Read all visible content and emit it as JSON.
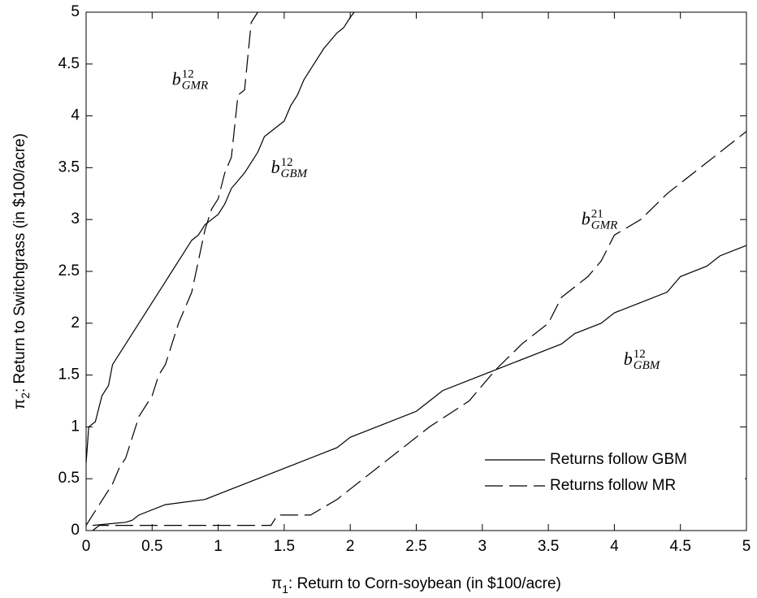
{
  "chart_data": {
    "type": "line",
    "xlabel": {
      "symbol": "π",
      "sub": "1",
      "text": ": Return to Corn-soybean (in $100/acre)"
    },
    "ylabel": {
      "symbol": "π",
      "sub": "2",
      "text": ": Return to Switchgrass (in $100/acre)"
    },
    "xlim": [
      0,
      5
    ],
    "ylim": [
      0,
      5
    ],
    "xticks": [
      0,
      0.5,
      1,
      1.5,
      2,
      2.5,
      3,
      3.5,
      4,
      4.5,
      5
    ],
    "yticks": [
      0,
      0.5,
      1,
      1.5,
      2,
      2.5,
      3,
      3.5,
      4,
      4.5,
      5
    ],
    "legend": "lower right",
    "series": [
      {
        "name": "Returns follow GBM",
        "color": "#000000",
        "dash": "solid",
        "x": [
          0,
          0.02,
          0.07,
          0.12,
          0.17,
          0.2,
          0.25,
          0.3,
          0.35,
          0.4,
          0.45,
          0.5,
          0.55,
          0.6,
          0.65,
          0.7,
          0.75,
          0.8,
          0.85,
          0.9,
          1.0,
          1.05,
          1.1,
          1.2,
          1.25,
          1.3,
          1.35,
          1.4,
          1.5,
          1.55,
          1.6,
          1.65,
          1.7,
          1.75,
          1.8,
          1.9,
          1.95,
          2.0,
          2.03,
          null,
          0.05,
          0.3,
          0.35,
          0.4,
          0.6,
          0.9,
          1.0,
          1.1,
          1.2,
          1.4,
          1.6,
          1.8,
          1.9,
          2.0,
          2.2,
          2.5,
          2.6,
          2.7,
          2.9,
          3.0,
          3.2,
          3.5,
          3.6,
          3.7,
          3.9,
          4.0,
          4.2,
          4.4,
          4.5,
          4.7,
          4.8,
          5.0
        ],
        "values": [
          0.65,
          1.0,
          1.05,
          1.3,
          1.4,
          1.6,
          1.7,
          1.8,
          1.9,
          2.0,
          2.1,
          2.2,
          2.3,
          2.4,
          2.5,
          2.6,
          2.7,
          2.8,
          2.85,
          2.95,
          3.05,
          3.15,
          3.3,
          3.45,
          3.55,
          3.65,
          3.8,
          3.85,
          3.95,
          4.1,
          4.2,
          4.35,
          4.45,
          4.55,
          4.65,
          4.8,
          4.85,
          4.95,
          5.0,
          null,
          0.05,
          0.08,
          0.1,
          0.15,
          0.25,
          0.3,
          0.35,
          0.4,
          0.45,
          0.55,
          0.65,
          0.75,
          0.8,
          0.9,
          1.0,
          1.15,
          1.25,
          1.35,
          1.45,
          1.5,
          1.6,
          1.75,
          1.8,
          1.9,
          2.0,
          2.1,
          2.2,
          2.3,
          2.45,
          2.55,
          2.65,
          2.75
        ]
      },
      {
        "name": "Returns follow MR",
        "color": "#000000",
        "dash": "dashed",
        "x": [
          0,
          0.05,
          0.1,
          0.15,
          0.2,
          0.25,
          0.3,
          0.35,
          0.4,
          0.45,
          0.5,
          0.55,
          0.6,
          0.65,
          0.7,
          0.8,
          0.85,
          0.9,
          0.95,
          1.0,
          1.05,
          1.1,
          1.15,
          1.2,
          1.25,
          1.3,
          null,
          0.05,
          0.1,
          0.5,
          1.4,
          1.45,
          1.7,
          1.9,
          2.0,
          2.3,
          2.6,
          2.9,
          3.0,
          3.1,
          3.3,
          3.5,
          3.6,
          3.8,
          3.9,
          4.0,
          4.2,
          4.4,
          4.6,
          4.8,
          5.0
        ],
        "values": [
          0.05,
          0.15,
          0.25,
          0.35,
          0.45,
          0.6,
          0.7,
          0.9,
          1.1,
          1.2,
          1.3,
          1.5,
          1.6,
          1.8,
          2.0,
          2.3,
          2.6,
          2.9,
          3.1,
          3.2,
          3.45,
          3.6,
          4.2,
          4.25,
          4.9,
          5.0,
          null,
          0.0,
          0.05,
          0.05,
          0.05,
          0.15,
          0.15,
          0.3,
          0.4,
          0.7,
          1.0,
          1.25,
          1.4,
          1.55,
          1.8,
          2.0,
          2.25,
          2.45,
          2.6,
          2.85,
          3.0,
          3.25,
          3.45,
          3.65,
          3.85
        ]
      }
    ],
    "annotations": [
      {
        "text": "b",
        "sup": "12",
        "sub": "GMR",
        "x": 0.65,
        "y": 4.3
      },
      {
        "text": "b",
        "sup": "12",
        "sub": "GBM",
        "x": 1.4,
        "y": 3.45
      },
      {
        "text": "b",
        "sup": "21",
        "sub": "GMR",
        "x": 3.75,
        "y": 2.95
      },
      {
        "text": "b",
        "sup": "12",
        "sub": "GBM",
        "x": 4.07,
        "y": 1.6
      }
    ]
  }
}
